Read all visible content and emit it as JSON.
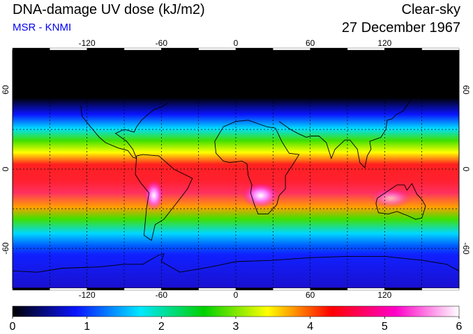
{
  "header": {
    "title": "DNA-damage UV dose (kJ/m2)",
    "subtitle": "MSR - KNMI",
    "condition": "Clear-sky",
    "date": "27 December 1967"
  },
  "map": {
    "projection": "equirectangular",
    "lon_range": [
      -180,
      180
    ],
    "lat_range": [
      -90,
      90
    ],
    "gridlines": "dashed",
    "lon_ticks_top": [
      "-120",
      "-60",
      "0",
      "60",
      "120"
    ],
    "lon_ticks_bottom": [
      "-120",
      "-60",
      "0",
      "60",
      "120"
    ],
    "lat_ticks_left": [
      "60",
      "0",
      "-60"
    ],
    "lat_ticks_right": [
      "60",
      "0",
      "-60"
    ]
  },
  "colorbar": {
    "labels": [
      "0",
      "1",
      "2",
      "3",
      "4",
      "5",
      "6"
    ],
    "colors": [
      "#000000",
      "#0a14ff",
      "#00e8ff",
      "#00d000",
      "#ffff00",
      "#ff0000",
      "#ff00c8",
      "#ffffff"
    ]
  }
}
